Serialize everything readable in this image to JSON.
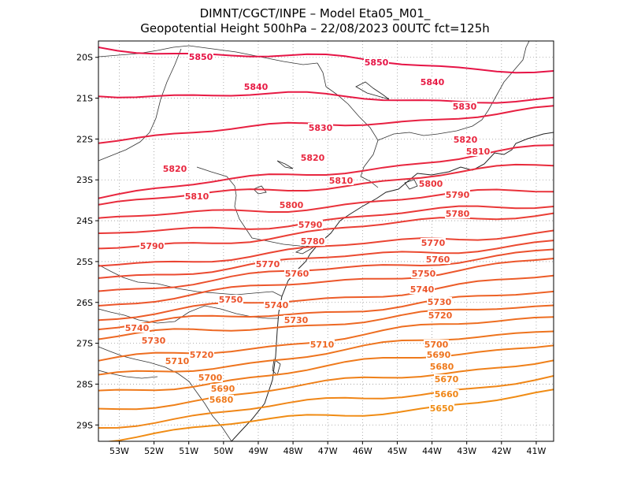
{
  "header": {
    "line1": "DIMNT/CGCT/INPE  –   Model Eta05_M01_",
    "line2": "Geopotential Height 500hPa  –   22/08/2023 00UTC fct=125h"
  },
  "chart_data": {
    "type": "contour-map",
    "field": "Geopotential Height 500hPa",
    "units": "gpm",
    "lon_range": [
      -53.6,
      -40.5
    ],
    "lat_range": [
      -29.4,
      -19.6
    ],
    "x_ticks": [
      "53W",
      "52W",
      "51W",
      "50W",
      "49W",
      "48W",
      "47W",
      "46W",
      "45W",
      "44W",
      "43W",
      "42W",
      "41W"
    ],
    "y_ticks": [
      "20S",
      "21S",
      "22S",
      "23S",
      "24S",
      "25S",
      "26S",
      "27S",
      "28S",
      "29S"
    ],
    "grid": true,
    "contour_interval": 10,
    "contours": [
      {
        "value": 5850,
        "labels": [
          "5850",
          "5850"
        ]
      },
      {
        "value": 5840,
        "labels": [
          "5840",
          "5840"
        ]
      },
      {
        "value": 5830,
        "labels": [
          "5830",
          "5830"
        ]
      },
      {
        "value": 5820,
        "labels": [
          "5820",
          "5820",
          "5820"
        ]
      },
      {
        "value": 5810,
        "labels": [
          "5810",
          "5810",
          "5810"
        ]
      },
      {
        "value": 5800,
        "labels": [
          "5800",
          "5800"
        ]
      },
      {
        "value": 5790,
        "labels": [
          "5790",
          "5790",
          "5790"
        ]
      },
      {
        "value": 5780,
        "labels": [
          "5780",
          "5780"
        ]
      },
      {
        "value": 5770,
        "labels": [
          "5770",
          "5770"
        ]
      },
      {
        "value": 5760,
        "labels": [
          "5760",
          "5760"
        ]
      },
      {
        "value": 5750,
        "labels": [
          "5750",
          "5750"
        ]
      },
      {
        "value": 5740,
        "labels": [
          "5740",
          "5740",
          "5740"
        ]
      },
      {
        "value": 5730,
        "labels": [
          "5730",
          "5730",
          "5730"
        ]
      },
      {
        "value": 5720,
        "labels": [
          "5720",
          "5720"
        ]
      },
      {
        "value": 5710,
        "labels": [
          "5710",
          "5710"
        ]
      },
      {
        "value": 5700,
        "labels": [
          "5700",
          "5700"
        ]
      },
      {
        "value": 5690,
        "labels": [
          "5690",
          "5690"
        ]
      },
      {
        "value": 5680,
        "labels": [
          "5680",
          "5680"
        ]
      },
      {
        "value": 5670,
        "labels": [
          "5670"
        ]
      },
      {
        "value": 5660,
        "labels": [
          "5660"
        ]
      },
      {
        "value": 5650,
        "labels": [
          "5650"
        ]
      }
    ]
  }
}
